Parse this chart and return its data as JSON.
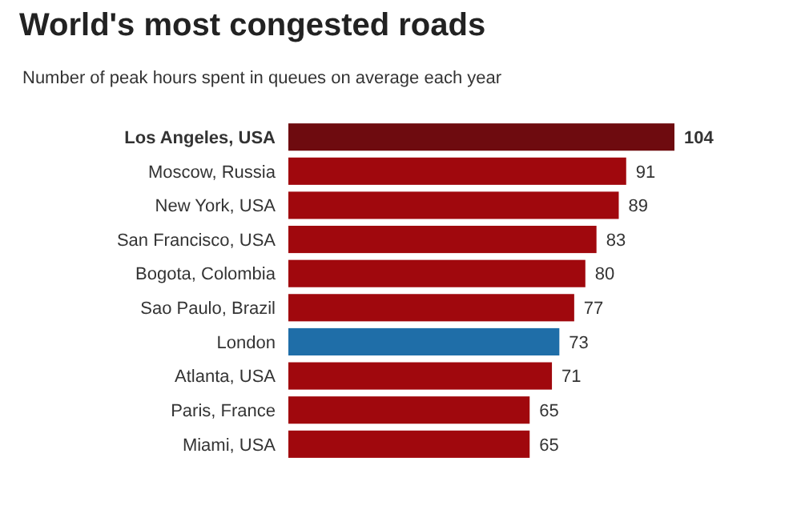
{
  "chart_data": {
    "type": "bar",
    "orientation": "horizontal",
    "title": "World's most congested roads",
    "subtitle": "Number of peak hours spent in queues on average each year",
    "categories": [
      "Los Angeles, USA",
      "Moscow, Russia",
      "New York, USA",
      "San Francisco, USA",
      "Bogota, Colombia",
      "Sao Paulo, Brazil",
      "London",
      "Atlanta, USA",
      "Paris, France",
      "Miami, USA"
    ],
    "values": [
      104,
      91,
      89,
      83,
      80,
      77,
      73,
      71,
      65,
      65
    ],
    "colors": [
      "#6e0b0f",
      "#a0080d",
      "#a0080d",
      "#a0080d",
      "#a0080d",
      "#a0080d",
      "#1f6ea8",
      "#a0080d",
      "#a0080d",
      "#a0080d"
    ],
    "data_labels": true
  }
}
